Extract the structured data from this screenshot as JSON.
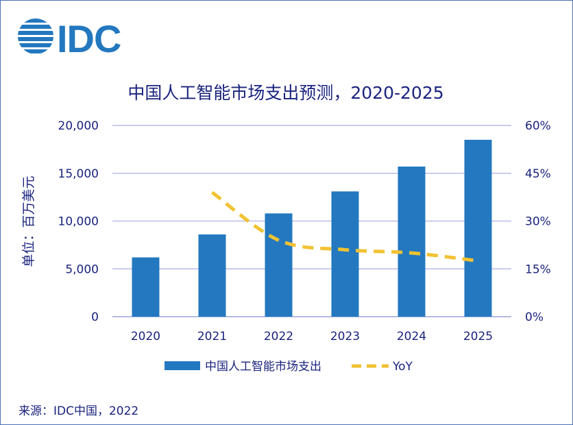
{
  "logo": {
    "text": "IDC"
  },
  "chart_data": {
    "type": "bar",
    "title": "中国人工智能市场支出预测，2020-2025",
    "ylabel": "单位：百万美元",
    "categories": [
      "2020",
      "2021",
      "2022",
      "2023",
      "2024",
      "2025"
    ],
    "series": [
      {
        "name": "中国人工智能市场支出",
        "type": "bar",
        "values": [
          6200,
          8600,
          10800,
          13100,
          15700,
          18500
        ],
        "color": "#2378bf"
      },
      {
        "name": "YoY",
        "type": "line",
        "axis": "right",
        "values": [
          null,
          39,
          24,
          21,
          20,
          17.5
        ],
        "color": "#f1c232",
        "line_style": "dashed"
      }
    ],
    "ylim": [
      0,
      20000
    ],
    "yticks": [
      "0",
      "5,000",
      "10,000",
      "15,000",
      "20,000"
    ],
    "y2lim": [
      0,
      60
    ],
    "y2ticks": [
      "0%",
      "15%",
      "30%",
      "45%",
      "60%"
    ],
    "grid": true,
    "legend_position": "bottom"
  },
  "source": "来源：IDC中国，2022"
}
